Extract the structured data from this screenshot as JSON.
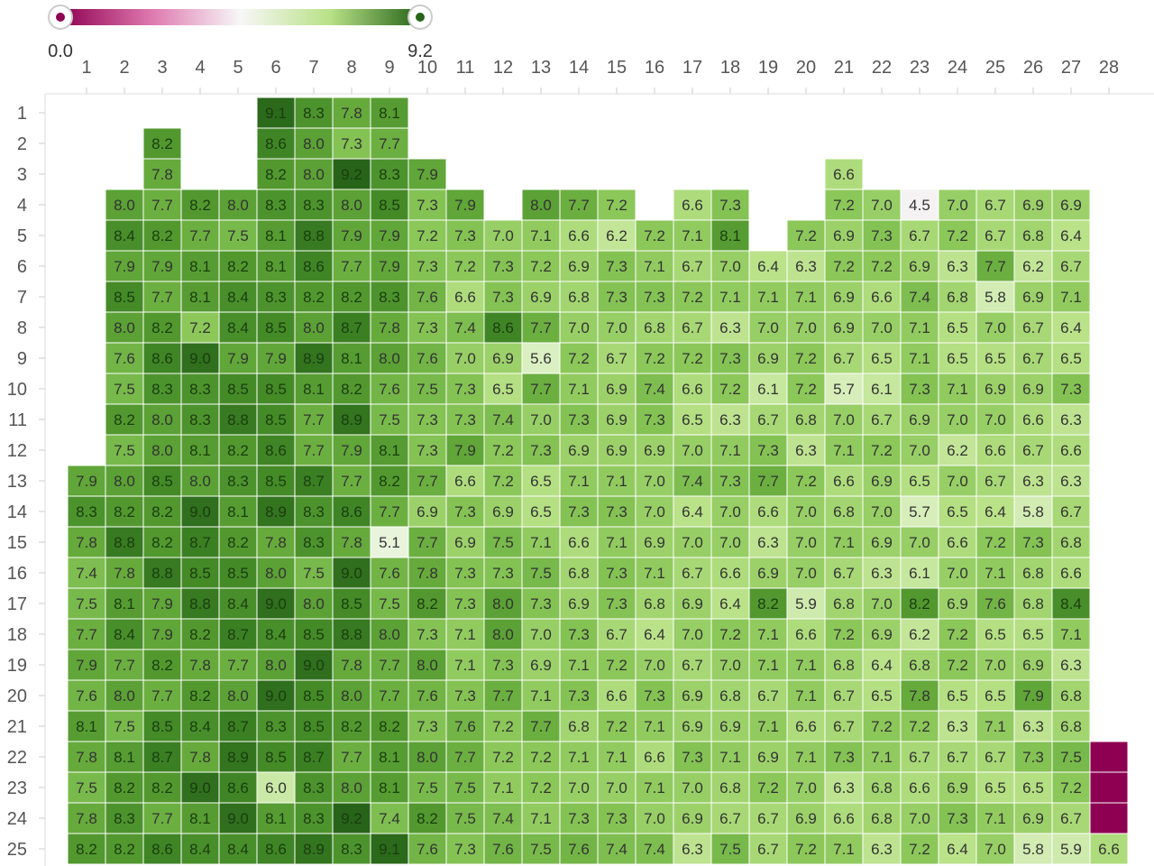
{
  "colors": {
    "low": "#8e0152",
    "low_mid": "#f1b6da",
    "mid": "#f7f7f7",
    "high_mid": "#b8e186",
    "high": "#276419",
    "axis": "#dddddd",
    "tick_label": "#555555"
  },
  "legend": {
    "min_label": "0.0",
    "max_label": "9.2"
  },
  "chart_data": {
    "type": "heatmap",
    "title": "",
    "xlabel": "",
    "ylabel": "",
    "x_categories": [
      "1",
      "2",
      "3",
      "4",
      "5",
      "6",
      "7",
      "8",
      "9",
      "10",
      "11",
      "12",
      "13",
      "14",
      "15",
      "16",
      "17",
      "18",
      "19",
      "20",
      "21",
      "22",
      "23",
      "24",
      "25",
      "26",
      "27",
      "28"
    ],
    "y_categories": [
      "1",
      "2",
      "3",
      "4",
      "5",
      "6",
      "7",
      "8",
      "9",
      "10",
      "11",
      "12",
      "13",
      "14",
      "15",
      "16",
      "17",
      "18",
      "19",
      "20",
      "21",
      "22",
      "23",
      "24",
      "25"
    ],
    "value_range": [
      0.0,
      9.2
    ],
    "color_scale": "diverging pink-green",
    "rows": [
      [
        null,
        null,
        null,
        null,
        null,
        9.1,
        8.3,
        7.8,
        8.1,
        null,
        null,
        null,
        null,
        null,
        null,
        null,
        null,
        null,
        null,
        null,
        null,
        null,
        null,
        null,
        null,
        null,
        null,
        null
      ],
      [
        null,
        null,
        8.2,
        null,
        null,
        8.6,
        8.0,
        7.3,
        7.7,
        null,
        null,
        null,
        null,
        null,
        null,
        null,
        null,
        null,
        null,
        null,
        null,
        null,
        null,
        null,
        null,
        null,
        null,
        null
      ],
      [
        null,
        null,
        7.8,
        null,
        null,
        8.2,
        8.0,
        9.2,
        8.3,
        7.9,
        null,
        null,
        null,
        null,
        null,
        null,
        null,
        null,
        null,
        null,
        6.6,
        null,
        null,
        null,
        null,
        null,
        null,
        null
      ],
      [
        null,
        8.0,
        7.7,
        8.2,
        8.0,
        8.3,
        8.3,
        8.0,
        8.5,
        7.3,
        7.9,
        null,
        8.0,
        7.7,
        7.2,
        null,
        6.6,
        7.3,
        null,
        null,
        7.2,
        7.0,
        4.5,
        7.0,
        6.7,
        6.9,
        6.9,
        null
      ],
      [
        null,
        8.4,
        8.2,
        7.7,
        7.5,
        8.1,
        8.8,
        7.9,
        7.9,
        7.2,
        7.3,
        7.0,
        7.1,
        6.6,
        6.2,
        7.2,
        7.1,
        8.1,
        null,
        7.2,
        6.9,
        7.3,
        6.7,
        7.2,
        6.7,
        6.8,
        6.4,
        null
      ],
      [
        null,
        7.9,
        7.9,
        8.1,
        8.2,
        8.1,
        8.6,
        7.7,
        7.9,
        7.3,
        7.2,
        7.3,
        7.2,
        6.9,
        7.3,
        7.1,
        6.7,
        7.0,
        6.4,
        6.3,
        7.2,
        7.2,
        6.9,
        6.3,
        7.7,
        6.2,
        6.7,
        null
      ],
      [
        null,
        8.5,
        7.7,
        8.1,
        8.4,
        8.3,
        8.2,
        8.2,
        8.3,
        7.6,
        6.6,
        7.3,
        6.9,
        6.8,
        7.3,
        7.3,
        7.2,
        7.1,
        7.1,
        7.1,
        6.9,
        6.6,
        7.4,
        6.8,
        5.8,
        6.9,
        7.1,
        null
      ],
      [
        null,
        8.0,
        8.2,
        7.2,
        8.4,
        8.5,
        8.0,
        8.7,
        7.8,
        7.3,
        7.4,
        8.6,
        7.7,
        7.0,
        7.0,
        6.8,
        6.7,
        6.3,
        7.0,
        7.0,
        6.9,
        7.0,
        7.1,
        6.5,
        7.0,
        6.7,
        6.4,
        null
      ],
      [
        null,
        7.6,
        8.6,
        9.0,
        7.9,
        7.9,
        8.9,
        8.1,
        8.0,
        7.6,
        7.0,
        6.9,
        5.6,
        7.2,
        6.7,
        7.2,
        7.2,
        7.3,
        6.9,
        7.2,
        6.7,
        6.5,
        7.1,
        6.5,
        6.5,
        6.7,
        6.5,
        null
      ],
      [
        null,
        7.5,
        8.3,
        8.3,
        8.5,
        8.5,
        8.1,
        8.2,
        7.6,
        7.5,
        7.3,
        6.5,
        7.7,
        7.1,
        6.9,
        7.4,
        6.6,
        7.2,
        6.1,
        7.2,
        5.7,
        6.1,
        7.3,
        7.1,
        6.9,
        6.9,
        7.3,
        null
      ],
      [
        null,
        8.2,
        8.0,
        8.3,
        8.8,
        8.5,
        7.7,
        8.9,
        7.5,
        7.3,
        7.3,
        7.4,
        7.0,
        7.3,
        6.9,
        7.3,
        6.5,
        6.3,
        6.7,
        6.8,
        7.0,
        6.7,
        6.9,
        7.0,
        7.0,
        6.6,
        6.3,
        null
      ],
      [
        null,
        7.5,
        8.0,
        8.1,
        8.2,
        8.6,
        7.7,
        7.9,
        8.1,
        7.3,
        7.9,
        7.2,
        7.3,
        6.9,
        6.9,
        6.9,
        7.0,
        7.1,
        7.3,
        6.3,
        7.1,
        7.2,
        7.0,
        6.2,
        6.6,
        6.7,
        6.6,
        null
      ],
      [
        7.9,
        8.0,
        8.5,
        8.0,
        8.3,
        8.5,
        8.7,
        7.7,
        8.2,
        7.7,
        6.6,
        7.2,
        6.5,
        7.1,
        7.1,
        7.0,
        7.4,
        7.3,
        7.7,
        7.2,
        6.6,
        6.9,
        6.5,
        7.0,
        6.7,
        6.3,
        6.3,
        null
      ],
      [
        8.3,
        8.2,
        8.2,
        9.0,
        8.1,
        8.9,
        8.3,
        8.6,
        7.7,
        6.9,
        7.3,
        6.9,
        6.5,
        7.3,
        7.3,
        7.0,
        6.4,
        7.0,
        6.6,
        7.0,
        6.8,
        7.0,
        5.7,
        6.5,
        6.4,
        5.8,
        6.7,
        null
      ],
      [
        7.8,
        8.8,
        8.2,
        8.7,
        8.2,
        7.8,
        8.3,
        7.8,
        5.1,
        7.7,
        6.9,
        7.5,
        7.1,
        6.6,
        7.1,
        6.9,
        7.0,
        7.0,
        6.3,
        7.0,
        7.1,
        6.9,
        7.0,
        6.6,
        7.2,
        7.3,
        6.8,
        null
      ],
      [
        7.4,
        7.8,
        8.8,
        8.5,
        8.5,
        8.0,
        7.5,
        9.0,
        7.6,
        7.8,
        7.3,
        7.3,
        7.5,
        6.8,
        7.3,
        7.1,
        6.7,
        6.6,
        6.9,
        7.0,
        6.7,
        6.3,
        6.1,
        7.0,
        7.1,
        6.8,
        6.6,
        null
      ],
      [
        7.5,
        8.1,
        7.9,
        8.8,
        8.4,
        9.0,
        8.0,
        8.5,
        7.5,
        8.2,
        7.3,
        8.0,
        7.3,
        6.9,
        7.3,
        6.8,
        6.9,
        6.4,
        8.2,
        5.9,
        6.8,
        7.0,
        8.2,
        6.9,
        7.6,
        6.8,
        8.4,
        null
      ],
      [
        7.7,
        8.4,
        7.9,
        8.2,
        8.7,
        8.4,
        8.5,
        8.8,
        8.0,
        7.3,
        7.1,
        8.0,
        7.0,
        7.3,
        6.7,
        6.4,
        7.0,
        7.2,
        7.1,
        6.6,
        7.2,
        6.9,
        6.2,
        7.2,
        6.5,
        6.5,
        7.1,
        null
      ],
      [
        7.9,
        7.7,
        8.2,
        7.8,
        7.7,
        8.0,
        9.0,
        7.8,
        7.7,
        8.0,
        7.1,
        7.3,
        6.9,
        7.1,
        7.2,
        7.0,
        6.7,
        7.0,
        7.1,
        7.1,
        6.8,
        6.4,
        6.8,
        7.2,
        7.0,
        6.9,
        6.3,
        null
      ],
      [
        7.6,
        8.0,
        7.7,
        8.2,
        8.0,
        9.0,
        8.5,
        8.0,
        7.7,
        7.6,
        7.3,
        7.7,
        7.1,
        7.3,
        6.6,
        7.3,
        6.9,
        6.8,
        6.7,
        7.1,
        6.7,
        6.5,
        7.8,
        6.5,
        6.5,
        7.9,
        6.8,
        null
      ],
      [
        8.1,
        7.5,
        8.5,
        8.4,
        8.7,
        8.3,
        8.5,
        8.2,
        8.2,
        7.3,
        7.6,
        7.2,
        7.7,
        6.8,
        7.2,
        7.1,
        6.9,
        6.9,
        7.1,
        6.6,
        6.7,
        7.2,
        7.2,
        6.3,
        7.1,
        6.3,
        6.8,
        null
      ],
      [
        7.8,
        8.1,
        8.7,
        7.8,
        8.9,
        8.5,
        8.7,
        7.7,
        8.1,
        8.0,
        7.7,
        7.2,
        7.2,
        7.1,
        7.1,
        6.6,
        7.3,
        7.1,
        6.9,
        7.1,
        7.3,
        7.1,
        6.7,
        6.7,
        6.7,
        7.3,
        7.5,
        0.0
      ],
      [
        7.5,
        8.2,
        8.2,
        9.0,
        8.6,
        6.0,
        8.3,
        8.0,
        8.1,
        7.5,
        7.5,
        7.1,
        7.2,
        7.0,
        7.0,
        7.1,
        7.0,
        6.8,
        7.2,
        7.0,
        6.3,
        6.8,
        6.6,
        6.9,
        6.5,
        6.5,
        7.2,
        0.0
      ],
      [
        7.8,
        8.3,
        7.7,
        8.1,
        9.0,
        8.1,
        8.3,
        9.2,
        7.4,
        8.2,
        7.5,
        7.4,
        7.1,
        7.3,
        7.3,
        7.0,
        6.9,
        6.7,
        6.7,
        6.9,
        6.6,
        6.8,
        7.0,
        7.3,
        7.1,
        6.9,
        6.7,
        0.0
      ],
      [
        8.2,
        8.2,
        8.6,
        8.4,
        8.4,
        8.6,
        8.9,
        8.3,
        9.1,
        7.6,
        7.3,
        7.6,
        7.5,
        7.6,
        7.4,
        7.4,
        6.3,
        7.5,
        6.7,
        7.2,
        7.1,
        6.3,
        7.2,
        6.4,
        7.0,
        5.8,
        5.9,
        6.6
      ]
    ],
    "labels_shown_for_zero": false,
    "legend_placement": "top-left"
  }
}
